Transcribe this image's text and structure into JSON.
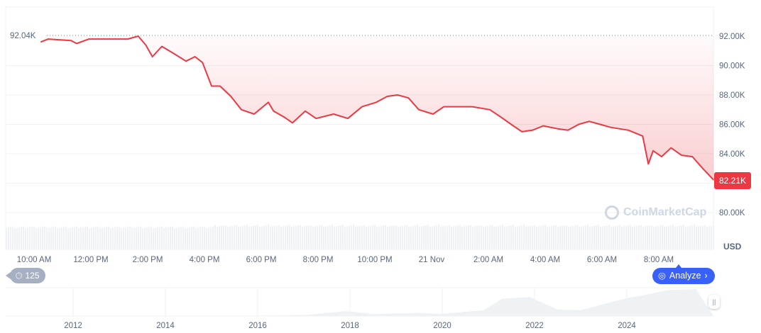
{
  "chart_data": {
    "type": "line",
    "currency_label": "USD",
    "ylim": [
      79000,
      94000
    ],
    "y_ticks": [
      "92.00K",
      "90.00K",
      "88.00K",
      "86.00K",
      "84.00K",
      "80.00K"
    ],
    "y_tick_values": [
      92000,
      90000,
      88000,
      86000,
      84000,
      80000
    ],
    "x_ticks": [
      "10:00 AM",
      "12:00 PM",
      "2:00 PM",
      "4:00 PM",
      "6:00 PM",
      "8:00 PM",
      "10:00 PM",
      "21 Nov",
      "2:00 AM",
      "4:00 AM",
      "6:00 AM",
      "8:00 AM"
    ],
    "grid": true,
    "line_color": "#ea3943",
    "high_label": "92.04K",
    "high_value": 92040,
    "current_label": "82.21K",
    "current_value": 82210,
    "series": [
      {
        "x": [
          "20 Nov 10:14",
          "20 Nov 10:30",
          "20 Nov 11:18",
          "20 Nov 11:30",
          "20 Nov 11:56",
          "20 Nov 12:18",
          "20 Nov 12:48",
          "20 Nov 13:18",
          "20 Nov 13:40",
          "20 Nov 13:56",
          "20 Nov 14:10",
          "20 Nov 14:30",
          "20 Nov 14:56",
          "20 Nov 15:21",
          "20 Nov 15:40",
          "20 Nov 15:56",
          "20 Nov 16:15",
          "20 Nov 16:33",
          "20 Nov 16:56",
          "20 Nov 17:18",
          "20 Nov 17:45",
          "20 Nov 18:15",
          "20 Nov 18:26",
          "20 Nov 18:48",
          "20 Nov 19:06",
          "20 Nov 19:33",
          "20 Nov 19:56",
          "20 Nov 20:33",
          "20 Nov 21:03",
          "20 Nov 21:33",
          "20 Nov 22:03",
          "20 Nov 22:26",
          "20 Nov 22:48",
          "20 Nov 23:11",
          "20 Nov 23:33",
          "21 Nov 00:03",
          "21 Nov 00:26",
          "21 Nov 00:56",
          "21 Nov 01:26",
          "21 Nov 02:03",
          "21 Nov 02:26",
          "21 Nov 02:48",
          "21 Nov 03:11",
          "21 Nov 03:33",
          "21 Nov 03:56",
          "21 Nov 04:26",
          "21 Nov 04:48",
          "21 Nov 05:11",
          "21 Nov 05:33",
          "21 Nov 05:56",
          "21 Nov 06:18",
          "21 Nov 06:56",
          "21 Nov 07:26",
          "21 Nov 07:38",
          "21 Nov 07:48",
          "21 Nov 08:06",
          "21 Nov 08:26",
          "21 Nov 08:48",
          "21 Nov 09:11",
          "21 Nov 09:33",
          "21 Nov 09:56"
        ],
        "y": [
          91600,
          91800,
          91700,
          91500,
          91800,
          91800,
          91800,
          91800,
          92000,
          91400,
          90600,
          91300,
          90800,
          90300,
          90600,
          90200,
          88600,
          88600,
          87900,
          87000,
          86700,
          87500,
          86900,
          86500,
          86100,
          86900,
          86400,
          86700,
          86400,
          87200,
          87500,
          87900,
          88000,
          87800,
          87000,
          86700,
          87200,
          87200,
          87200,
          87000,
          86500,
          86000,
          85500,
          85600,
          85900,
          85700,
          85600,
          86000,
          86200,
          86000,
          85800,
          85600,
          85200,
          83300,
          84200,
          83800,
          84400,
          83900,
          83800,
          83000,
          82210
        ]
      }
    ],
    "navigator": {
      "x_ticks": [
        "2012",
        "2014",
        "2016",
        "2018",
        "2020",
        "2022",
        "2024"
      ],
      "years": [
        2011,
        2013,
        2015,
        2017,
        2017.9,
        2018.5,
        2019.5,
        2020,
        2020.9,
        2021.3,
        2021.9,
        2022.5,
        2023,
        2024,
        2024.3,
        2024.9,
        2025.5
      ],
      "values": [
        0,
        800,
        300,
        3000,
        17000,
        7000,
        10000,
        7000,
        20000,
        60000,
        65000,
        22000,
        20000,
        62000,
        70000,
        90000,
        93000
      ],
      "fill_color": "#eff2f5"
    }
  },
  "ui": {
    "history_count": "125",
    "analyze_label": "Analyze",
    "watermark": "CoinMarketCap",
    "history_icon": "clock-history-icon",
    "analyze_icon": "chat-logo-icon",
    "chevron_icon": "chevron-right-icon"
  }
}
